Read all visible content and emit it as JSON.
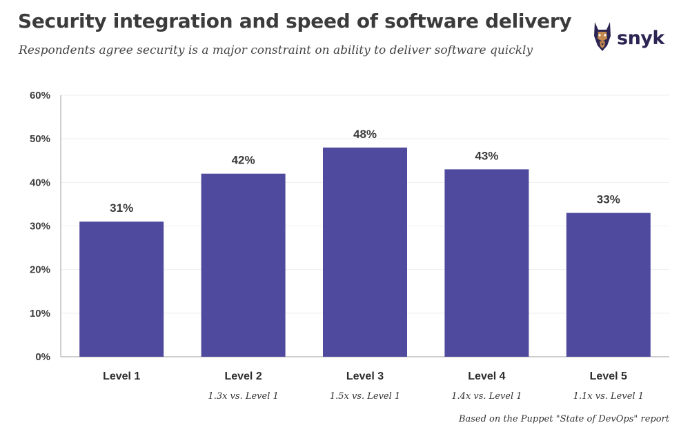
{
  "header": {
    "title": "Security integration and speed of software delivery",
    "subtitle": "Respondents agree security is a major constraint on ability to deliver software quickly"
  },
  "brand": {
    "name": "snyk",
    "icon": "doberman-icon",
    "color": "#2c2452"
  },
  "footnote": "Based on the Puppet \"State of DevOps\" report",
  "colors": {
    "bar": "#4f4a9e",
    "grid": "#eeeeee",
    "axis": "#bdbdbd"
  },
  "chart_data": {
    "type": "bar",
    "title": "Security integration and speed of software delivery",
    "subtitle": "Respondents agree security is a major constraint on ability to deliver software quickly",
    "categories": [
      "Level 1",
      "Level 2",
      "Level 3",
      "Level 4",
      "Level 5"
    ],
    "notes": [
      "",
      "1.3x vs. Level 1",
      "1.5x vs. Level 1",
      "1.4x vs. Level 1",
      "1.1x vs. Level 1"
    ],
    "values": [
      31,
      42,
      48,
      43,
      33
    ],
    "data_labels": [
      "31%",
      "42%",
      "48%",
      "43%",
      "33%"
    ],
    "yticks": [
      0,
      10,
      20,
      30,
      40,
      50,
      60
    ],
    "ytick_labels": [
      "0%",
      "10%",
      "20%",
      "30%",
      "40%",
      "50%",
      "60%"
    ],
    "ylim": [
      0,
      60
    ],
    "xlabel": "",
    "ylabel": "",
    "grid": true
  }
}
